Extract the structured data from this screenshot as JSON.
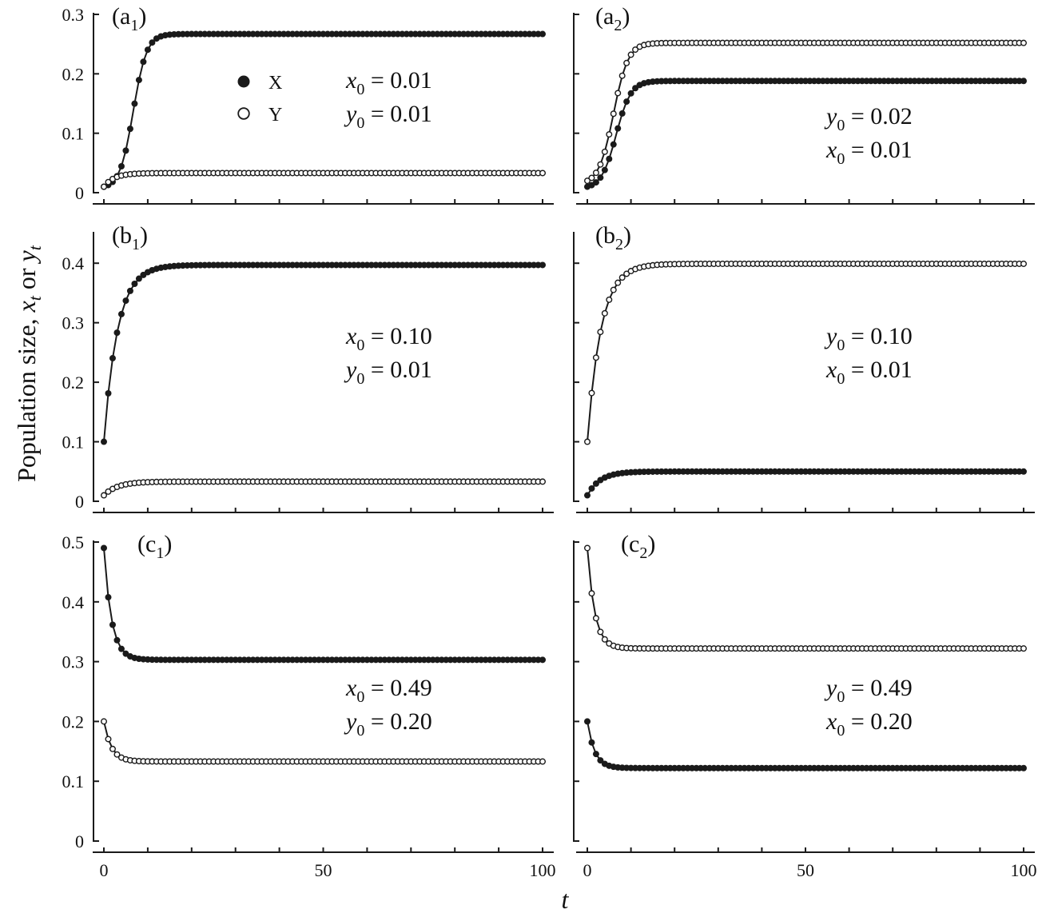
{
  "figure": {
    "ylabel_prefix": "Population size, ",
    "ylabel_x": "x",
    "ylabel_or": " or ",
    "ylabel_y": "y",
    "ylabel_sub": "t",
    "xlabel": "t"
  },
  "legend": [
    {
      "label": "X",
      "marker": "filled"
    },
    {
      "label": "Y",
      "marker": "open"
    }
  ],
  "colors": {
    "ink": "#1a1a1a",
    "background": "#ffffff"
  },
  "chart_data": [
    {
      "id": "a1",
      "type": "line",
      "panel_label": "a",
      "panel_sub": "1",
      "xlim": [
        0,
        100
      ],
      "ylim": [
        0,
        0.3
      ],
      "yticks": [
        "0",
        "0.1",
        "0.2",
        "0.3"
      ],
      "ytick_values": [
        0,
        0.1,
        0.2,
        0.3
      ],
      "xticks": [
        "0",
        "50",
        "100"
      ],
      "xtick_values": [
        0,
        50,
        100
      ],
      "init": [
        {
          "var": "x",
          "value": "0.01"
        },
        {
          "var": "y",
          "value": "0.01"
        }
      ],
      "series": [
        {
          "name": "X",
          "marker": "filled",
          "start": 0.01,
          "end": 0.267,
          "mode": "logistic",
          "k": 0.66,
          "t_mid": 6.7
        },
        {
          "name": "Y",
          "marker": "open",
          "start": 0.01,
          "end": 0.033,
          "mode": "exp",
          "rate": 0.42
        }
      ],
      "show_legend": true
    },
    {
      "id": "a2",
      "type": "line",
      "panel_label": "a",
      "panel_sub": "2",
      "xlim": [
        0,
        100
      ],
      "ylim": [
        0,
        0.3
      ],
      "yticks": [],
      "ytick_values": [
        0,
        0.1,
        0.2,
        0.3
      ],
      "xticks": [
        "0",
        "50",
        "100"
      ],
      "xtick_values": [
        0,
        50,
        100
      ],
      "init": [
        {
          "var": "y",
          "value": "0.02"
        },
        {
          "var": "x",
          "value": "0.01"
        }
      ],
      "series": [
        {
          "name": "X",
          "marker": "filled",
          "start": 0.01,
          "end": 0.188,
          "mode": "logistic",
          "k": 0.6,
          "t_mid": 6.6
        },
        {
          "name": "Y",
          "marker": "open",
          "start": 0.02,
          "end": 0.252,
          "mode": "logistic",
          "k": 0.6,
          "t_mid": 6.0
        }
      ],
      "show_legend": false
    },
    {
      "id": "b1",
      "type": "line",
      "panel_label": "b",
      "panel_sub": "1",
      "xlim": [
        0,
        100
      ],
      "ylim": [
        0,
        0.45
      ],
      "yticks": [
        "0",
        "0.1",
        "0.2",
        "0.3",
        "0.4"
      ],
      "ytick_values": [
        0,
        0.1,
        0.2,
        0.3,
        0.4
      ],
      "xticks": [
        "0",
        "50",
        "100"
      ],
      "xtick_values": [
        0,
        50,
        100
      ],
      "init": [
        {
          "var": "x",
          "value": "0.10"
        },
        {
          "var": "y",
          "value": "0.01"
        }
      ],
      "series": [
        {
          "name": "X",
          "marker": "filled",
          "start": 0.1,
          "end": 0.397,
          "mode": "exp",
          "rate": 0.32
        },
        {
          "name": "Y",
          "marker": "open",
          "start": 0.01,
          "end": 0.033,
          "mode": "exp",
          "rate": 0.32
        }
      ],
      "show_legend": false
    },
    {
      "id": "b2",
      "type": "line",
      "panel_label": "b",
      "panel_sub": "2",
      "xlim": [
        0,
        100
      ],
      "ylim": [
        0,
        0.45
      ],
      "yticks": [],
      "ytick_values": [
        0,
        0.1,
        0.2,
        0.3,
        0.4
      ],
      "xticks": [
        "0",
        "50",
        "100"
      ],
      "xtick_values": [
        0,
        50,
        100
      ],
      "init": [
        {
          "var": "y",
          "value": "0.10"
        },
        {
          "var": "x",
          "value": "0.01"
        }
      ],
      "series": [
        {
          "name": "X",
          "marker": "filled",
          "start": 0.01,
          "end": 0.05,
          "mode": "exp",
          "rate": 0.34
        },
        {
          "name": "Y",
          "marker": "open",
          "start": 0.1,
          "end": 0.399,
          "mode": "exp",
          "rate": 0.32
        }
      ],
      "show_legend": false
    },
    {
      "id": "c1",
      "type": "line",
      "panel_label": "c",
      "panel_sub": "1",
      "xlim": [
        0,
        100
      ],
      "ylim": [
        0,
        0.5
      ],
      "yticks": [
        "0",
        "0.1",
        "0.2",
        "0.3",
        "0.4",
        "0.5"
      ],
      "ytick_values": [
        0,
        0.1,
        0.2,
        0.3,
        0.4,
        0.5
      ],
      "xticks": [
        "0",
        "50",
        "100"
      ],
      "xtick_values": [
        0,
        50,
        100
      ],
      "init": [
        {
          "var": "x",
          "value": "0.49"
        },
        {
          "var": "y",
          "value": "0.20"
        }
      ],
      "series": [
        {
          "name": "X",
          "marker": "filled",
          "start": 0.49,
          "end": 0.303,
          "mode": "exp",
          "rate": 0.58
        },
        {
          "name": "Y",
          "marker": "open",
          "start": 0.2,
          "end": 0.133,
          "mode": "exp",
          "rate": 0.58
        }
      ],
      "show_legend": false
    },
    {
      "id": "c2",
      "type": "line",
      "panel_label": "c",
      "panel_sub": "2",
      "xlim": [
        0,
        100
      ],
      "ylim": [
        0,
        0.5
      ],
      "yticks": [],
      "ytick_values": [
        0,
        0.1,
        0.2,
        0.3,
        0.4,
        0.5
      ],
      "xticks": [
        "0",
        "50",
        "100"
      ],
      "xtick_values": [
        0,
        50,
        100
      ],
      "init": [
        {
          "var": "y",
          "value": "0.49"
        },
        {
          "var": "x",
          "value": "0.20"
        }
      ],
      "series": [
        {
          "name": "X",
          "marker": "filled",
          "start": 0.2,
          "end": 0.122,
          "mode": "exp",
          "rate": 0.6
        },
        {
          "name": "Y",
          "marker": "open",
          "start": 0.49,
          "end": 0.322,
          "mode": "exp",
          "rate": 0.6
        }
      ],
      "show_legend": false
    }
  ]
}
